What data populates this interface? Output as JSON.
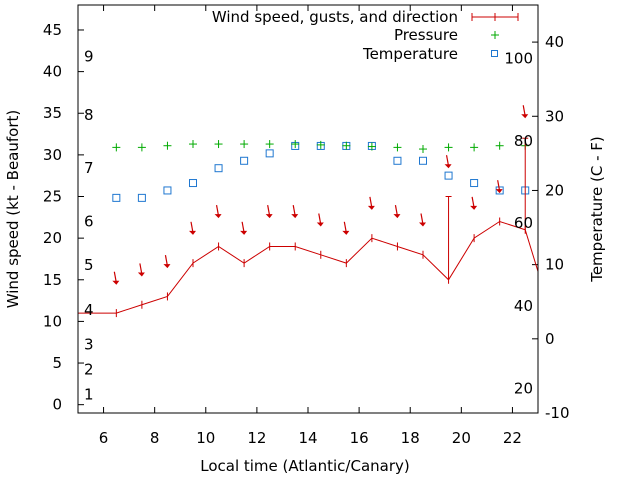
{
  "chart_data": {
    "type": "line",
    "xlabel": "Local time (Atlantic/Canary)",
    "ylabel_left": "Wind speed (kt - Beaufort)",
    "ylabel_right": "Temperature (C - F)",
    "x_ticks": [
      6,
      8,
      10,
      12,
      14,
      16,
      18,
      20,
      22
    ],
    "y_left_ticks": [
      0,
      5,
      10,
      15,
      20,
      25,
      30,
      35,
      40,
      45
    ],
    "y_right_ticks": [
      -10,
      0,
      10,
      20,
      30,
      40
    ],
    "beaufort_labels": [
      {
        "v": 1,
        "at": 1.2
      },
      {
        "v": 2,
        "at": 4.2
      },
      {
        "v": 3,
        "at": 7.2
      },
      {
        "v": 4,
        "at": 11.4
      },
      {
        "v": 5,
        "at": 16.8
      },
      {
        "v": 6,
        "at": 22.0
      },
      {
        "v": 7,
        "at": 28.4
      },
      {
        "v": 8,
        "at": 34.8
      },
      {
        "v": 9,
        "at": 41.8
      }
    ],
    "fahrenheit_labels": [
      {
        "v": 20,
        "at": -6.7
      },
      {
        "v": 40,
        "at": 4.4
      },
      {
        "v": 60,
        "at": 15.6
      },
      {
        "v": 80,
        "at": 26.7
      },
      {
        "v": 100,
        "at": 37.8
      }
    ],
    "xlim": [
      5,
      23
    ],
    "ylim_left": [
      -1,
      48
    ],
    "ylim_right": [
      -10,
      45
    ],
    "legend_position": "top-right",
    "series": [
      {
        "name": "Wind speed, gusts, and direction",
        "x": [
          5,
          6.5,
          7.5,
          8.5,
          9.5,
          10.5,
          11.5,
          12.5,
          13.5,
          14.5,
          15.5,
          16.5,
          17.5,
          18.5,
          19.5,
          20.5,
          21.5,
          22.5,
          23
        ],
        "y": [
          11,
          11,
          12,
          13,
          17,
          19,
          17,
          19,
          19,
          18,
          17,
          20,
          19,
          18,
          15,
          20,
          22,
          21,
          16
        ],
        "gusts": [
          {
            "x": 19.5,
            "y": 25
          },
          {
            "x": 22.5,
            "y": 32
          }
        ],
        "color": "#cc0000"
      },
      {
        "name": "Pressure",
        "x": [
          6.5,
          7.5,
          8.5,
          9.5,
          10.5,
          11.5,
          12.5,
          13.5,
          14.5,
          15.5,
          16.5,
          17.5,
          18.5,
          19.5,
          20.5,
          21.5,
          22.5
        ],
        "y": [
          30.9,
          30.9,
          31.1,
          31.3,
          31.3,
          31.3,
          31.3,
          31.3,
          31.2,
          31.1,
          31.0,
          30.9,
          30.7,
          30.9,
          30.9,
          31.1,
          31.1
        ],
        "color": "#00aa00"
      },
      {
        "name": "Temperature",
        "x": [
          6.5,
          7.5,
          8.5,
          9.5,
          10.5,
          11.5,
          12.5,
          13.5,
          14.5,
          15.5,
          16.5,
          17.5,
          18.5,
          19.5,
          20.5,
          21.5,
          22.5
        ],
        "y": [
          19.0,
          19.0,
          20.0,
          21.0,
          23.0,
          24.0,
          25.0,
          26.0,
          26.0,
          26.0,
          26.0,
          24.0,
          24.0,
          22.0,
          21.0,
          20.0,
          20.0
        ],
        "color": "#1f77d0"
      }
    ],
    "wind_arrows": [
      {
        "x": 6.5,
        "y": 15.0
      },
      {
        "x": 7.5,
        "y": 16.0
      },
      {
        "x": 8.5,
        "y": 17.0
      },
      {
        "x": 9.5,
        "y": 21.0
      },
      {
        "x": 10.5,
        "y": 23.0
      },
      {
        "x": 11.5,
        "y": 21.0
      },
      {
        "x": 12.5,
        "y": 23.0
      },
      {
        "x": 13.5,
        "y": 23.0
      },
      {
        "x": 14.5,
        "y": 22.0
      },
      {
        "x": 15.5,
        "y": 21.0
      },
      {
        "x": 16.5,
        "y": 24.0
      },
      {
        "x": 17.5,
        "y": 23.0
      },
      {
        "x": 18.5,
        "y": 22.0
      },
      {
        "x": 19.5,
        "y": 29.0
      },
      {
        "x": 20.5,
        "y": 24.0
      },
      {
        "x": 21.5,
        "y": 26.0
      },
      {
        "x": 22.5,
        "y": 35.0
      }
    ]
  }
}
